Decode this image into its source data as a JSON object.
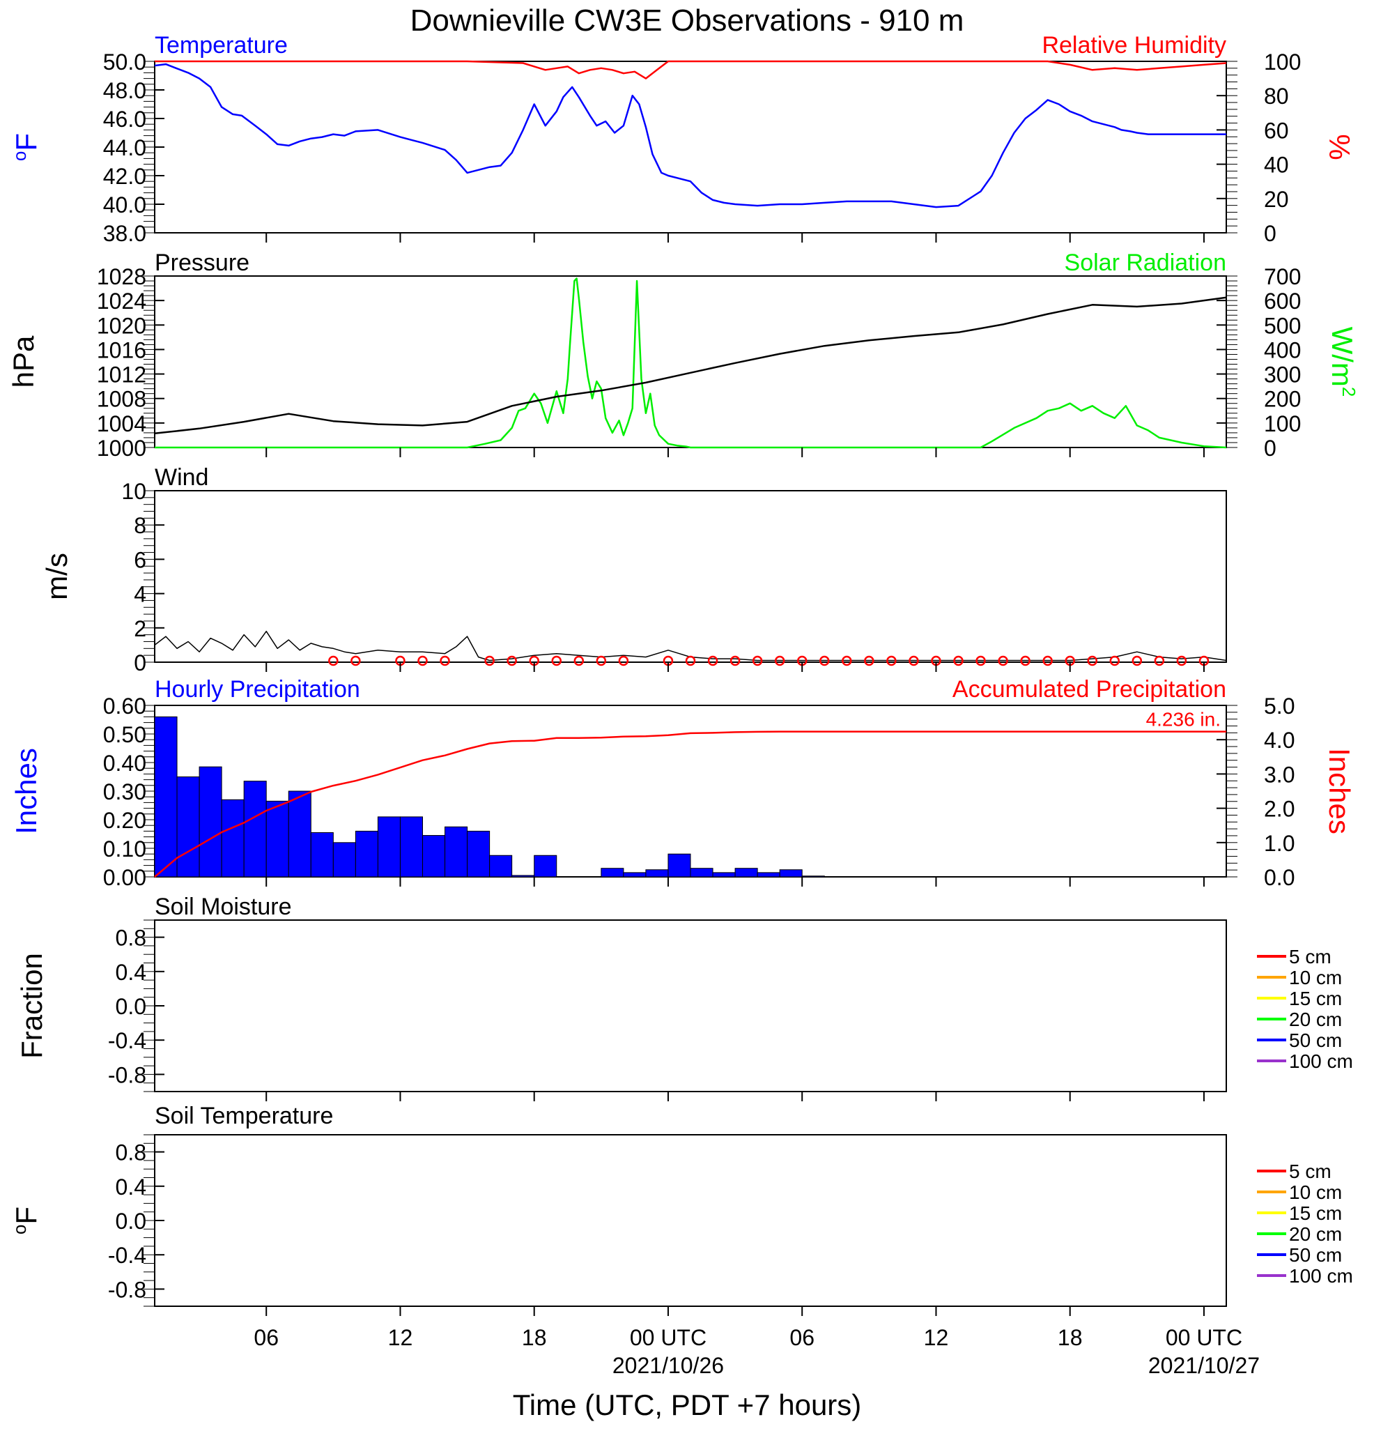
{
  "title": "Downieville CW3E Observations - 910 m",
  "xlabel": "Time (UTC, PDT +7 hours)",
  "x_ticks": [
    {
      "h": 6,
      "label": "06",
      "date": ""
    },
    {
      "h": 12,
      "label": "12",
      "date": ""
    },
    {
      "h": 18,
      "label": "18",
      "date": ""
    },
    {
      "h": 24,
      "label": "00 UTC",
      "date": "2021/10/26"
    },
    {
      "h": 30,
      "label": "06",
      "date": ""
    },
    {
      "h": 36,
      "label": "12",
      "date": ""
    },
    {
      "h": 42,
      "label": "18",
      "date": ""
    },
    {
      "h": 48,
      "label": "00 UTC",
      "date": "2021/10/27"
    }
  ],
  "x_range_hours": [
    1,
    49
  ],
  "colors": {
    "temperature": "#0000ff",
    "humidity": "#ff0000",
    "pressure": "#000000",
    "solar": "#00ee00",
    "wind": "#000000",
    "wind_barb": "#ff0000",
    "hourly_precip": "#0000ff",
    "accum_precip": "#ff0000"
  },
  "panels": {
    "temp": {
      "title_left": "Temperature",
      "title_right": "Relative Humidity",
      "ylabel_left": "oF",
      "ylabel_right": "%",
      "yticks_left": [
        "50.0",
        "48.0",
        "46.0",
        "44.0",
        "42.0",
        "40.0",
        "38.0"
      ],
      "yticks_right": [
        "100",
        "80",
        "60",
        "40",
        "20",
        "0"
      ]
    },
    "pres": {
      "title_left": "Pressure",
      "title_right": "Solar Radiation",
      "ylabel_left": "hPa",
      "ylabel_right": "W/m2",
      "yticks_left": [
        "1028",
        "1024",
        "1020",
        "1016",
        "1012",
        "1008",
        "1004",
        "1000"
      ],
      "yticks_right": [
        "700",
        "600",
        "500",
        "400",
        "300",
        "200",
        "100",
        "0"
      ]
    },
    "wind": {
      "title_left": "Wind",
      "ylabel_left": "m/s",
      "yticks_left": [
        "10",
        "8",
        "6",
        "4",
        "2",
        "0"
      ]
    },
    "precip": {
      "title_left": "Hourly Precipitation",
      "title_right": "Accumulated Precipitation",
      "ylabel_left": "Inches",
      "ylabel_right": "Inches",
      "yticks_left": [
        "0.60",
        "0.50",
        "0.40",
        "0.30",
        "0.20",
        "0.10",
        "0.00"
      ],
      "yticks_right": [
        "5.0",
        "4.0",
        "3.0",
        "2.0",
        "1.0",
        "0.0"
      ],
      "total_label": "4.236 in."
    },
    "soil_moisture": {
      "title_left": "Soil Moisture",
      "ylabel_left": "Fraction",
      "yticks_left": [
        "0.8",
        "0.4",
        "0.0",
        "-0.4",
        "-0.8"
      ],
      "legend": [
        "5 cm",
        "10 cm",
        "15 cm",
        "20 cm",
        "50 cm",
        "100 cm"
      ]
    },
    "soil_temp": {
      "title_left": "Soil Temperature",
      "ylabel_left": "oF",
      "yticks_left": [
        "0.8",
        "0.4",
        "0.0",
        "-0.4",
        "-0.8"
      ],
      "legend": [
        "5 cm",
        "10 cm",
        "15 cm",
        "20 cm",
        "50 cm",
        "100 cm"
      ]
    }
  },
  "legend_colors": [
    "#ff0000",
    "#ffa500",
    "#ffff00",
    "#00ff00",
    "#0000ff",
    "#9932cc"
  ],
  "chart_data": [
    {
      "type": "line",
      "panel": "temp",
      "series": [
        {
          "name": "Temperature",
          "axis": "left",
          "unit": "°F",
          "x": [
            1,
            1.5,
            2,
            2.5,
            3,
            3.5,
            4,
            4.5,
            4.9,
            5.5,
            6,
            6.5,
            7,
            7.5,
            8,
            8.5,
            9,
            9.5,
            10,
            11,
            12,
            12.5,
            13,
            14,
            14.5,
            15,
            15.5,
            16,
            16.5,
            17,
            17.5,
            18,
            18.5,
            19,
            19.3,
            19.7,
            20,
            20.5,
            20.8,
            21.2,
            21.6,
            22,
            22.4,
            22.7,
            23,
            23.3,
            23.7,
            24,
            25,
            25.5,
            26,
            26.5,
            27,
            28,
            29,
            30,
            31,
            32,
            33,
            34,
            35,
            36,
            37,
            38,
            38.5,
            39,
            39.5,
            40,
            40.5,
            41,
            41.5,
            42,
            42.5,
            43,
            43.5,
            44,
            44.3,
            44.7,
            45,
            45.5,
            46,
            46.5,
            47,
            47.5,
            48,
            48.5,
            49
          ],
          "values": [
            49.7,
            49.8,
            49.5,
            49.2,
            48.8,
            48.2,
            46.8,
            46.3,
            46.2,
            45.5,
            44.9,
            44.2,
            44.1,
            44.4,
            44.6,
            44.7,
            44.9,
            44.8,
            45.1,
            45.2,
            44.7,
            44.5,
            44.3,
            43.8,
            43.1,
            42.2,
            42.4,
            42.6,
            42.7,
            43.6,
            45.2,
            47.0,
            45.5,
            46.5,
            47.5,
            48.2,
            47.5,
            46.2,
            45.5,
            45.8,
            45.0,
            45.5,
            47.6,
            47.0,
            45.4,
            43.5,
            42.2,
            42.0,
            41.6,
            40.8,
            40.3,
            40.1,
            40.0,
            39.9,
            40.0,
            40.0,
            40.1,
            40.2,
            40.2,
            40.2,
            40.0,
            39.8,
            39.9,
            40.9,
            42.0,
            43.6,
            45.0,
            46.0,
            46.6,
            47.3,
            47.0,
            46.5,
            46.2,
            45.8,
            45.6,
            45.4,
            45.2,
            45.1,
            45.0,
            44.9,
            44.9,
            44.9,
            44.9,
            44.9,
            44.9,
            44.9,
            44.9
          ]
        },
        {
          "name": "Relative Humidity",
          "axis": "right",
          "unit": "%",
          "x": [
            1,
            5,
            10,
            15,
            17.5,
            18,
            18.5,
            19,
            19.5,
            20,
            20.5,
            21,
            21.5,
            22,
            22.5,
            23,
            23.5,
            24,
            30,
            36,
            41,
            42,
            43,
            44,
            45,
            46,
            47,
            48,
            49
          ],
          "values": [
            100,
            100,
            100,
            100,
            99,
            97,
            95,
            96,
            97,
            93,
            95,
            96,
            95,
            93,
            94,
            90,
            95,
            100,
            100,
            100,
            100,
            98,
            95,
            96,
            95,
            96,
            97,
            98,
            99
          ]
        }
      ],
      "ylim_left": [
        38,
        50
      ],
      "ylim_right": [
        0,
        100
      ]
    },
    {
      "type": "line",
      "panel": "pres",
      "series": [
        {
          "name": "Pressure",
          "axis": "left",
          "unit": "hPa",
          "x": [
            1,
            3,
            5,
            7,
            9,
            11,
            13,
            15,
            17,
            19,
            21,
            23,
            25,
            27,
            29,
            31,
            33,
            35,
            37,
            39,
            41,
            43,
            45,
            47,
            49
          ],
          "values": [
            1002.3,
            1003.1,
            1004.2,
            1005.5,
            1004.3,
            1003.8,
            1003.6,
            1004.2,
            1006.8,
            1008.3,
            1009.3,
            1010.6,
            1012.2,
            1013.8,
            1015.3,
            1016.6,
            1017.5,
            1018.2,
            1018.8,
            1020.1,
            1021.8,
            1023.3,
            1023.0,
            1023.5,
            1024.5
          ]
        },
        {
          "name": "Solar Radiation",
          "axis": "right",
          "unit": "W/m2",
          "x": [
            1,
            15,
            15.8,
            16.5,
            17,
            17.3,
            17.6,
            18,
            18.3,
            18.6,
            19,
            19.3,
            19.5,
            19.6,
            19.8,
            19.9,
            20,
            20.2,
            20.4,
            20.6,
            20.8,
            21,
            21.2,
            21.5,
            21.8,
            22,
            22.2,
            22.4,
            22.6,
            22.8,
            23,
            23.2,
            23.4,
            23.6,
            24,
            24.4,
            24.8,
            25,
            30,
            38,
            38.5,
            39.5,
            40.5,
            41,
            41.5,
            42,
            42.5,
            43,
            43.5,
            44,
            44.5,
            45,
            45.5,
            46,
            47,
            48,
            49
          ],
          "values": [
            0,
            0,
            15,
            30,
            80,
            150,
            160,
            220,
            180,
            100,
            230,
            140,
            280,
            420,
            680,
            690,
            610,
            430,
            290,
            200,
            270,
            240,
            120,
            60,
            110,
            50,
            100,
            160,
            680,
            280,
            140,
            220,
            90,
            50,
            15,
            8,
            4,
            0,
            0,
            0,
            25,
            80,
            120,
            150,
            160,
            180,
            150,
            170,
            140,
            120,
            170,
            90,
            70,
            40,
            20,
            5,
            0
          ]
        }
      ],
      "ylim_left": [
        1000,
        1028
      ],
      "ylim_right": [
        0,
        700
      ]
    },
    {
      "type": "line",
      "panel": "wind",
      "series": [
        {
          "name": "Wind",
          "unit": "m/s",
          "x": [
            1,
            1.5,
            2,
            2.5,
            3,
            3.5,
            4,
            4.5,
            5,
            5.5,
            6,
            6.5,
            7,
            7.5,
            8,
            8.5,
            9,
            9.5,
            10,
            11,
            12,
            13,
            14,
            14.5,
            15,
            15.5,
            16,
            17,
            18,
            19,
            20,
            21,
            22,
            23,
            24,
            24.5,
            25,
            26,
            27,
            28,
            29,
            30,
            31,
            32,
            33,
            34,
            35,
            36,
            37,
            38,
            39,
            40,
            41,
            42,
            43,
            44,
            45,
            46,
            47,
            48,
            49
          ],
          "values": [
            1.0,
            1.5,
            0.8,
            1.2,
            0.6,
            1.4,
            1.1,
            0.7,
            1.6,
            0.9,
            1.8,
            0.8,
            1.3,
            0.7,
            1.1,
            0.9,
            0.8,
            0.6,
            0.5,
            0.7,
            0.6,
            0.6,
            0.5,
            0.9,
            1.5,
            0.3,
            0.1,
            0.2,
            0.4,
            0.5,
            0.4,
            0.3,
            0.4,
            0.3,
            0.7,
            0.5,
            0.3,
            0.2,
            0.2,
            0.1,
            0.1,
            0.1,
            0.1,
            0.1,
            0.1,
            0.1,
            0.1,
            0.1,
            0.1,
            0.1,
            0.1,
            0.1,
            0.1,
            0.1,
            0.2,
            0.3,
            0.6,
            0.3,
            0.2,
            0.3,
            0.1
          ]
        }
      ],
      "barbs_calm_hours": [
        9,
        10,
        12,
        13,
        14,
        16,
        17,
        18,
        19,
        20,
        21,
        22,
        24,
        25,
        26,
        27,
        28,
        29,
        30,
        31,
        32,
        33,
        34,
        35,
        36,
        37,
        38,
        39,
        40,
        41,
        42,
        43,
        44,
        45,
        46,
        47,
        48
      ],
      "ylim": [
        0,
        10
      ]
    },
    {
      "type": "bar",
      "panel": "precip",
      "series": [
        {
          "name": "Hourly Precipitation",
          "axis": "left",
          "unit": "in",
          "x": [
            1,
            2,
            3,
            4,
            5,
            6,
            7,
            8,
            9,
            10,
            11,
            12,
            13,
            14,
            15,
            16,
            17,
            18,
            19,
            20,
            21,
            22,
            23,
            24,
            25,
            26,
            27,
            28,
            29,
            30
          ],
          "values": [
            0.56,
            0.35,
            0.385,
            0.27,
            0.335,
            0.265,
            0.3,
            0.155,
            0.12,
            0.16,
            0.21,
            0.21,
            0.145,
            0.175,
            0.16,
            0.075,
            0.005,
            0.075,
            0,
            0,
            0.03,
            0.015,
            0.025,
            0.08,
            0.03,
            0.015,
            0.03,
            0.015,
            0.025,
            0.003
          ]
        },
        {
          "name": "Accumulated Precipitation",
          "axis": "right",
          "unit": "in",
          "type": "line",
          "x": [
            1,
            2,
            3,
            4,
            5,
            6,
            7,
            8,
            9,
            10,
            11,
            12,
            13,
            14,
            15,
            16,
            17,
            18,
            19,
            20,
            21,
            22,
            23,
            24,
            25,
            26,
            27,
            28,
            29,
            30,
            31,
            49
          ],
          "values": [
            0,
            0.55,
            0.92,
            1.3,
            1.58,
            1.93,
            2.19,
            2.48,
            2.66,
            2.8,
            2.98,
            3.19,
            3.4,
            3.54,
            3.73,
            3.89,
            3.96,
            3.97,
            4.05,
            4.05,
            4.06,
            4.09,
            4.1,
            4.13,
            4.19,
            4.2,
            4.22,
            4.23,
            4.235,
            4.236,
            4.236,
            4.236
          ]
        }
      ],
      "ylim_left": [
        0,
        0.6
      ],
      "ylim_right": [
        0,
        5
      ]
    },
    {
      "type": "line",
      "panel": "soil_moisture",
      "series": [],
      "ylim": [
        -1,
        1
      ]
    },
    {
      "type": "line",
      "panel": "soil_temp",
      "series": [],
      "ylim": [
        -1,
        1
      ]
    }
  ]
}
